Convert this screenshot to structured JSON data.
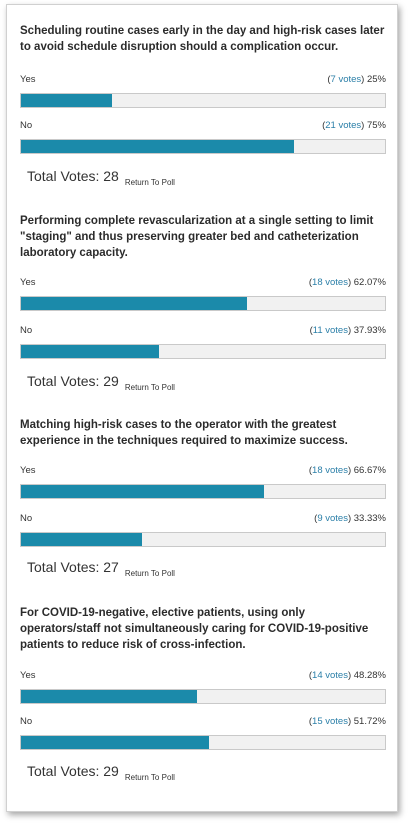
{
  "polls": [
    {
      "question": "Scheduling routine cases early in the day and high-risk cases later to avoid schedule disruption should a complication occur.",
      "answers": [
        {
          "label": "Yes",
          "votes_text": "7 votes",
          "percent_text": "25%",
          "percent": 25
        },
        {
          "label": "No",
          "votes_text": "21 votes",
          "percent_text": "75%",
          "percent": 75
        }
      ],
      "total_label": "Total Votes: 28",
      "return_label": "Return To Poll"
    },
    {
      "question": "Performing complete revascularization at a single setting to limit \"staging\" and thus preserving greater bed and catheterization laboratory capacity.",
      "answers": [
        {
          "label": "Yes",
          "votes_text": "18 votes",
          "percent_text": "62.07%",
          "percent": 62.07
        },
        {
          "label": "No",
          "votes_text": "11 votes",
          "percent_text": "37.93%",
          "percent": 37.93
        }
      ],
      "total_label": "Total Votes: 29",
      "return_label": "Return To Poll"
    },
    {
      "question": "Matching high-risk cases to the operator with the greatest experience in the techniques required to maximize success.",
      "answers": [
        {
          "label": "Yes",
          "votes_text": "18 votes",
          "percent_text": "66.67%",
          "percent": 66.67
        },
        {
          "label": "No",
          "votes_text": "9 votes",
          "percent_text": "33.33%",
          "percent": 33.33
        }
      ],
      "total_label": "Total Votes: 27",
      "return_label": "Return To Poll"
    },
    {
      "question": "For COVID-19-negative, elective patients, using only operators/staff not simultaneously caring for COVID-19-positive patients to reduce risk of cross-infection.",
      "answers": [
        {
          "label": "Yes",
          "votes_text": "14 votes",
          "percent_text": "48.28%",
          "percent": 48.28
        },
        {
          "label": "No",
          "votes_text": "15 votes",
          "percent_text": "51.72%",
          "percent": 51.72
        }
      ],
      "total_label": "Total Votes: 29",
      "return_label": "Return To Poll"
    }
  ],
  "colors": {
    "bar_fill": "#1b8aaa",
    "bar_track": "#f1f1f1",
    "votes_link": "#2b7fa8"
  }
}
